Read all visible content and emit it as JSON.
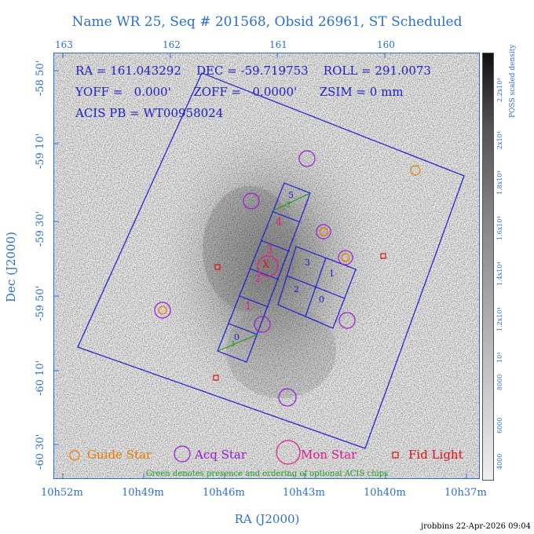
{
  "title": "Name WR 25, Seq # 201568, Obsid 26961, ST Scheduled",
  "axes": {
    "ylabel": "Dec (J2000)",
    "xlabel": "RA (J2000)",
    "top_ticks": [
      "163",
      "162",
      "161",
      "160"
    ],
    "bottom_ticks": [
      "10h52m",
      "10h49m",
      "10h46m",
      "10h43m",
      "10h40m",
      "10h37m"
    ],
    "left_ticks": [
      "-58 50'",
      "-59 10'",
      "-59 30'",
      "-59 50'",
      "-60 10'",
      "-60 30'"
    ]
  },
  "info": {
    "line1": "RA = 161.043292    DEC = -59.719753    ROLL = 291.0073",
    "line2": "YOFF =   0.000'      ZOFF =   0.0000'      ZSIM = 0 mm",
    "line3": "ACIS PB = WT00958024"
  },
  "colorbar": {
    "label": "POSS scaled density",
    "ticks": [
      "2.2x10⁴",
      "2x10⁴",
      "1.8x10⁴",
      "1.6x10⁴",
      "1.4x10⁴",
      "1.2x10⁴",
      "10⁴",
      "8000",
      "6000",
      "4000"
    ]
  },
  "chips": {
    "s": [
      "5",
      "4",
      "3",
      "2",
      "1",
      "0"
    ],
    "i": [
      "3",
      "1",
      "2",
      "0"
    ],
    "green_top": "2",
    "green_bottom": "1",
    "center_mark": "X"
  },
  "legend": {
    "guide": "Guide Star",
    "acq": "Acq Star",
    "mon": "Mon Star",
    "fid": "Fid Light",
    "note": "Green denotes presence and ordering of optional ACIS chips"
  },
  "colors": {
    "guide": "#f07800",
    "acq": "#9a1ad6",
    "mon": "#e0188c",
    "fid": "#e01010",
    "chip": "#1a1ad6",
    "optional": "#1f9a1f",
    "axis": "#2a6fd6"
  },
  "credit": "jrobbins 22-Apr-2026 09:04"
}
